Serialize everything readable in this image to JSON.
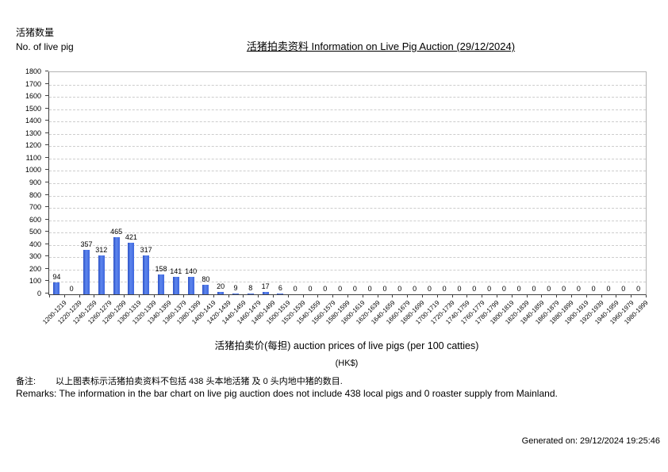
{
  "header": {
    "y_unit_cn": "活猪数量",
    "y_unit_en": "No. of live pig",
    "title": "活猪拍卖资料 Information on Live Pig Auction (29/12/2024)"
  },
  "chart_data": {
    "type": "bar",
    "title": "活猪拍卖资料 Information on Live Pig Auction (29/12/2024)",
    "categories": [
      "1200-1219",
      "1220-1239",
      "1240-1259",
      "1260-1279",
      "1280-1299",
      "1300-1319",
      "1320-1339",
      "1340-1359",
      "1360-1379",
      "1380-1399",
      "1400-1419",
      "1420-1439",
      "1440-1459",
      "1460-1479",
      "1480-1499",
      "1500-1519",
      "1520-1539",
      "1540-1559",
      "1560-1579",
      "1580-1599",
      "1600-1619",
      "1620-1639",
      "1640-1659",
      "1660-1679",
      "1680-1699",
      "1700-1719",
      "1720-1739",
      "1740-1759",
      "1760-1779",
      "1780-1799",
      "1800-1819",
      "1820-1839",
      "1840-1859",
      "1860-1879",
      "1880-1899",
      "1900-1919",
      "1920-1939",
      "1940-1959",
      "1960-1979",
      "1980-1999"
    ],
    "values": [
      94,
      0,
      357,
      312,
      465,
      421,
      317,
      158,
      141,
      140,
      80,
      20,
      9,
      8,
      17,
      6,
      0,
      0,
      0,
      0,
      0,
      0,
      0,
      0,
      0,
      0,
      0,
      0,
      0,
      0,
      0,
      0,
      0,
      0,
      0,
      0,
      0,
      0,
      0,
      0
    ],
    "ylabel": "活猪数量 No. of live pig",
    "xlabel": "活猪拍卖价(每担) auction prices of live pigs (per 100 catties)",
    "xlabel_unit": "(HK$)",
    "ylim": [
      0,
      1800
    ],
    "ytick_step": 100,
    "grid": true,
    "legend": "none",
    "data_labels": true,
    "bar_color": "#4a70e4"
  },
  "footer": {
    "remark_cn_label": "备注:",
    "remark_cn_text": "以上图表标示活猪拍卖资料不包括 438 头本地活猪 及 0 头内地中猪的数目.",
    "remark_en": "Remarks: The information in the bar chart on live pig auction does not include 438 local pigs and 0 roaster supply from Mainland.",
    "generated": "Generated on: 29/12/2024 19:25:46"
  }
}
